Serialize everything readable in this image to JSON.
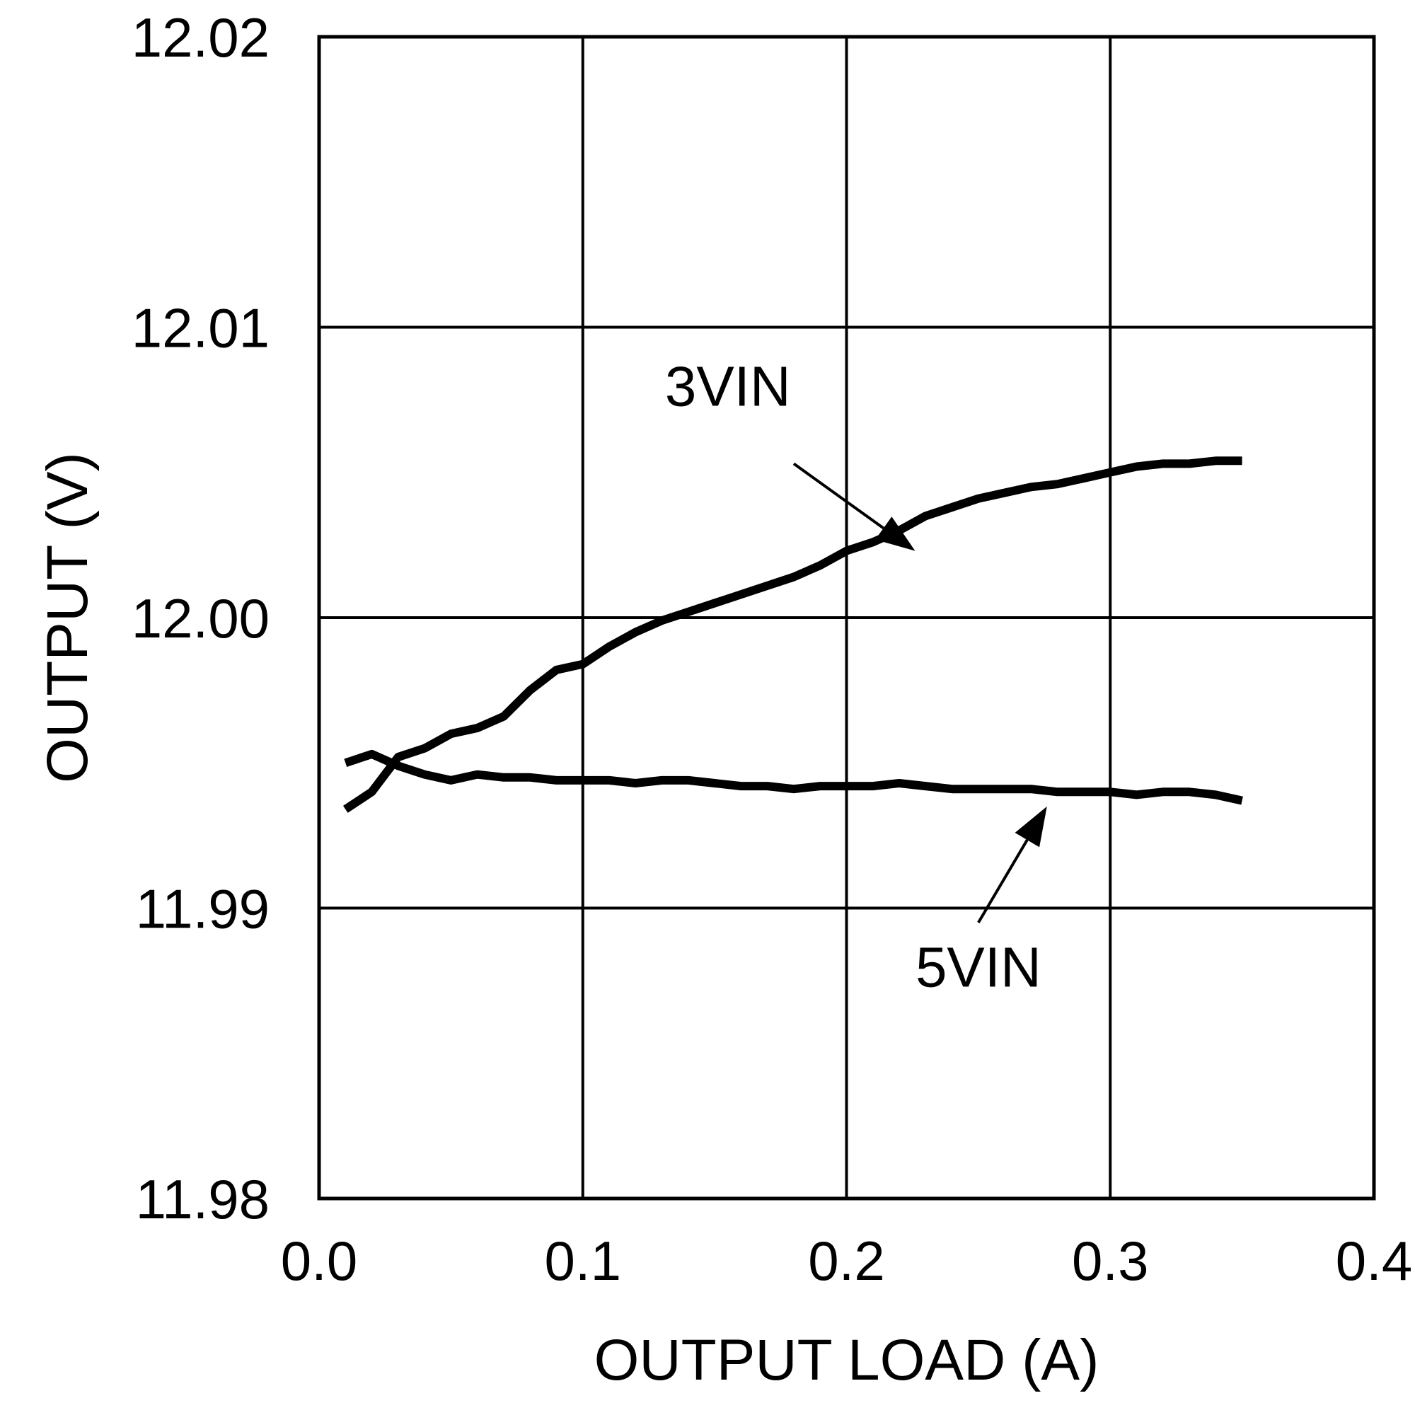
{
  "chart_data": {
    "type": "line",
    "title": "",
    "xlabel": "OUTPUT LOAD (A)",
    "ylabel": "OUTPUT (V)",
    "xlim": [
      0.0,
      0.4
    ],
    "ylim": [
      11.98,
      12.02
    ],
    "grid": true,
    "x_ticks": [
      0.0,
      0.1,
      0.2,
      0.3,
      0.4
    ],
    "y_ticks": [
      11.98,
      11.99,
      12.0,
      12.01,
      12.02
    ],
    "x_tick_labels": [
      "0.0",
      "0.1",
      "0.2",
      "0.3",
      "0.4"
    ],
    "y_tick_labels": [
      "11.98",
      "11.99",
      "12.00",
      "12.01",
      "12.02"
    ],
    "series": [
      {
        "name": "3VIN",
        "x": [
          0.01,
          0.02,
          0.03,
          0.04,
          0.05,
          0.06,
          0.07,
          0.08,
          0.09,
          0.1,
          0.11,
          0.12,
          0.13,
          0.14,
          0.15,
          0.16,
          0.17,
          0.18,
          0.19,
          0.2,
          0.21,
          0.22,
          0.23,
          0.24,
          0.25,
          0.26,
          0.27,
          0.28,
          0.29,
          0.3,
          0.31,
          0.32,
          0.33,
          0.34,
          0.35
        ],
        "values": [
          11.9934,
          11.994,
          11.9952,
          11.9955,
          11.996,
          11.9962,
          11.9966,
          11.9975,
          11.9982,
          11.9984,
          11.999,
          11.9995,
          11.9999,
          12.0002,
          12.0005,
          12.0008,
          12.0011,
          12.0014,
          12.0018,
          12.0023,
          12.0026,
          12.003,
          12.0035,
          12.0038,
          12.0041,
          12.0043,
          12.0045,
          12.0046,
          12.0048,
          12.005,
          12.0052,
          12.0053,
          12.0053,
          12.0054,
          12.0054
        ]
      },
      {
        "name": "5VIN",
        "x": [
          0.01,
          0.02,
          0.03,
          0.04,
          0.05,
          0.06,
          0.07,
          0.08,
          0.09,
          0.1,
          0.11,
          0.12,
          0.13,
          0.14,
          0.15,
          0.16,
          0.17,
          0.18,
          0.19,
          0.2,
          0.21,
          0.22,
          0.23,
          0.24,
          0.25,
          0.26,
          0.27,
          0.28,
          0.29,
          0.3,
          0.31,
          0.32,
          0.33,
          0.34,
          0.35
        ],
        "values": [
          11.995,
          11.9953,
          11.9949,
          11.9946,
          11.9944,
          11.9946,
          11.9945,
          11.9945,
          11.9944,
          11.9944,
          11.9944,
          11.9943,
          11.9944,
          11.9944,
          11.9943,
          11.9942,
          11.9942,
          11.9941,
          11.9942,
          11.9942,
          11.9942,
          11.9943,
          11.9942,
          11.9941,
          11.9941,
          11.9941,
          11.9941,
          11.994,
          11.994,
          11.994,
          11.9939,
          11.994,
          11.994,
          11.9939,
          11.9937
        ]
      }
    ],
    "annotations": [
      {
        "text": "3VIN",
        "series": "3VIN",
        "label_at": [
          0.155,
          12.0073
        ],
        "arrow_from": [
          0.18,
          12.0053
        ],
        "arrow_to": [
          0.226,
          12.0023
        ]
      },
      {
        "text": "5VIN",
        "series": "5VIN",
        "label_at": [
          0.25,
          11.9873
        ],
        "arrow_from": [
          0.25,
          11.9895
        ],
        "arrow_to": [
          0.276,
          11.9935
        ]
      }
    ]
  },
  "colors": {
    "background": "#ffffff",
    "ink": "#000000"
  }
}
